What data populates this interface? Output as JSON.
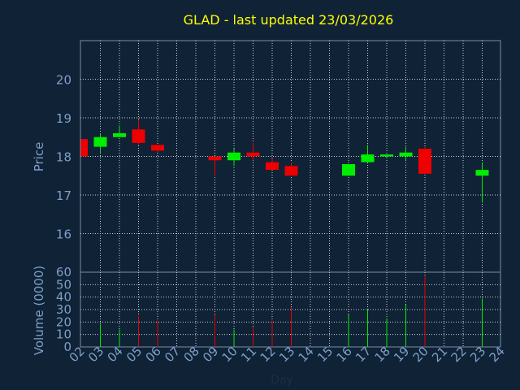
{
  "chart_data": {
    "type": "candlestick",
    "title": "GLAD - last updated 23/03/2026",
    "xlabel": "Day",
    "price_panel": {
      "ylabel": "Price",
      "ylim": [
        15,
        21
      ],
      "yticks": [
        16,
        17,
        18,
        19,
        20
      ],
      "grid": true
    },
    "volume_panel": {
      "ylabel": "Volume (0000)",
      "ylim": [
        0,
        60
      ],
      "yticks": [
        0,
        10,
        20,
        30,
        40,
        50,
        60
      ],
      "grid": true
    },
    "days": [
      "02",
      "03",
      "04",
      "05",
      "06",
      "07",
      "08",
      "09",
      "10",
      "11",
      "12",
      "13",
      "14",
      "15",
      "16",
      "17",
      "18",
      "19",
      "20",
      "21",
      "22",
      "23",
      "24"
    ],
    "candles": [
      {
        "day": "02",
        "open": 18.45,
        "high": 18.45,
        "low": 18.0,
        "close": 18.0,
        "volume": 0
      },
      {
        "day": "03",
        "open": 18.25,
        "high": 18.6,
        "low": 18.1,
        "close": 18.5,
        "volume": 18
      },
      {
        "day": "04",
        "open": 18.5,
        "high": 18.8,
        "low": 18.5,
        "close": 18.6,
        "volume": 14
      },
      {
        "day": "05",
        "open": 18.7,
        "high": 18.95,
        "low": 18.3,
        "close": 18.35,
        "volume": 25
      },
      {
        "day": "06",
        "open": 18.3,
        "high": 18.3,
        "low": 18.1,
        "close": 18.15,
        "volume": 21
      },
      {
        "day": "09",
        "open": 18.0,
        "high": 18.0,
        "low": 17.5,
        "close": 17.9,
        "volume": 26
      },
      {
        "day": "10",
        "open": 17.9,
        "high": 18.2,
        "low": 17.75,
        "close": 18.1,
        "volume": 14
      },
      {
        "day": "11",
        "open": 18.1,
        "high": 18.35,
        "low": 17.9,
        "close": 18.0,
        "volume": 16
      },
      {
        "day": "12",
        "open": 17.85,
        "high": 17.95,
        "low": 17.65,
        "close": 17.65,
        "volume": 21
      },
      {
        "day": "13",
        "open": 17.75,
        "high": 17.85,
        "low": 17.5,
        "close": 17.5,
        "volume": 32
      },
      {
        "day": "16",
        "open": 17.5,
        "high": 17.8,
        "low": 17.5,
        "close": 17.8,
        "volume": 26
      },
      {
        "day": "17",
        "open": 17.85,
        "high": 18.3,
        "low": 17.85,
        "close": 18.05,
        "volume": 30
      },
      {
        "day": "18",
        "open": 18.0,
        "high": 18.05,
        "low": 17.95,
        "close": 18.05,
        "volume": 23
      },
      {
        "day": "19",
        "open": 18.0,
        "high": 18.25,
        "low": 17.9,
        "close": 18.1,
        "volume": 34
      },
      {
        "day": "20",
        "open": 18.2,
        "high": 18.25,
        "low": 17.55,
        "close": 17.55,
        "volume": 57
      },
      {
        "day": "23",
        "open": 17.5,
        "high": 17.85,
        "low": 16.8,
        "close": 17.65,
        "volume": 39
      }
    ],
    "colors": {
      "background": "#0f2236",
      "frame": "#7a8fa6",
      "grid": "#c8d2dc",
      "up": "#00ee00",
      "down": "#ee0000",
      "title": "#ffff00",
      "axis_text": "#7f9fc7"
    }
  }
}
